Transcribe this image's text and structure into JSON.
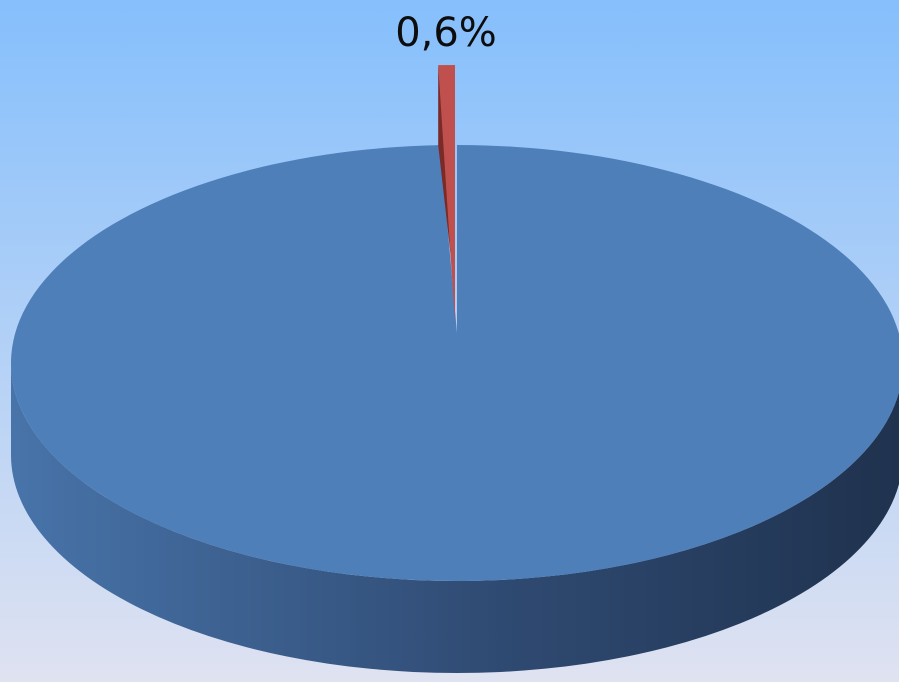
{
  "colors": {
    "background_top": "#85bffc",
    "background_bottom": "#dfe2f1",
    "main_slice_top": "#4e7fb9",
    "main_slice_side_light": "#4874aa",
    "main_slice_side_dark": "#1f324e",
    "small_slice_top": "#c0504d",
    "small_slice_side": "#7a2a27"
  },
  "chart_data": {
    "type": "pie",
    "style": "3d",
    "legend": "none",
    "slices": [
      {
        "value": 99.4,
        "color": "#4e7fb9"
      },
      {
        "value": 0.6,
        "label": "0,6%",
        "color": "#c0504d",
        "exploded": true
      }
    ]
  }
}
